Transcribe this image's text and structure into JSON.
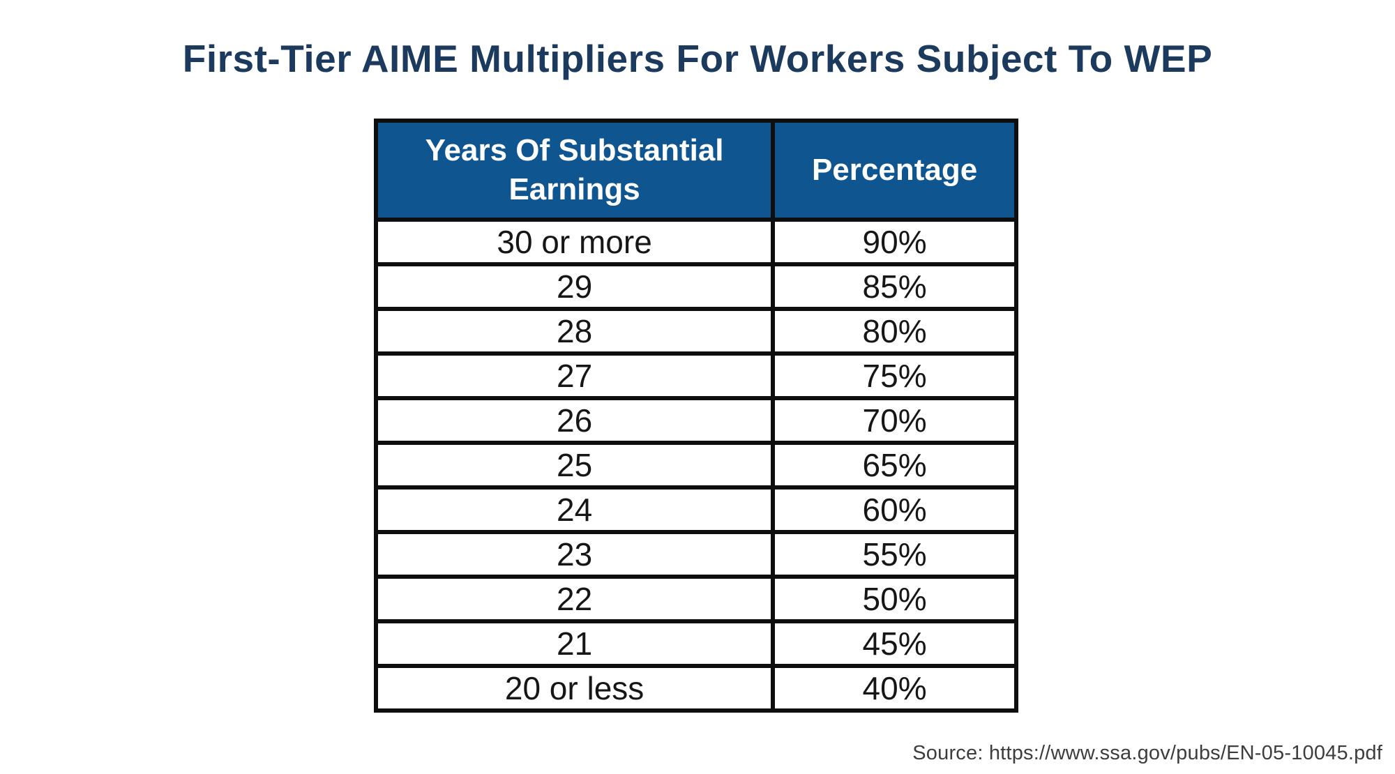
{
  "title": "First-Tier AIME Multipliers For Workers Subject To WEP",
  "table": {
    "columns": [
      "Years Of Substantial Earnings",
      "Percentage"
    ],
    "rows": [
      {
        "years": "30 or more",
        "percentage": "90%"
      },
      {
        "years": "29",
        "percentage": "85%"
      },
      {
        "years": "28",
        "percentage": "80%"
      },
      {
        "years": "27",
        "percentage": "75%"
      },
      {
        "years": "26",
        "percentage": "70%"
      },
      {
        "years": "25",
        "percentage": "65%"
      },
      {
        "years": "24",
        "percentage": "60%"
      },
      {
        "years": "23",
        "percentage": "55%"
      },
      {
        "years": "22",
        "percentage": "50%"
      },
      {
        "years": "21",
        "percentage": "45%"
      },
      {
        "years": "20 or less",
        "percentage": "40%"
      }
    ]
  },
  "source": "Source: https://www.ssa.gov/pubs/EN-05-10045.pdf",
  "colors": {
    "header_bg": "#0f5690",
    "header_text": "#ffffff",
    "title_text": "#1c3a5e",
    "border": "#0e0e0e",
    "cell_text": "#161616",
    "source_text": "#3d3d3d"
  },
  "chart_data": {
    "type": "table",
    "title": "First-Tier AIME Multipliers For Workers Subject To WEP",
    "columns": [
      "Years Of Substantial Earnings",
      "Percentage"
    ],
    "rows": [
      [
        "30 or more",
        "90%"
      ],
      [
        "29",
        "85%"
      ],
      [
        "28",
        "80%"
      ],
      [
        "27",
        "75%"
      ],
      [
        "26",
        "70%"
      ],
      [
        "25",
        "65%"
      ],
      [
        "24",
        "60%"
      ],
      [
        "23",
        "55%"
      ],
      [
        "22",
        "50%"
      ],
      [
        "21",
        "45%"
      ],
      [
        "20 or less",
        "40%"
      ]
    ],
    "source": "https://www.ssa.gov/pubs/EN-05-10045.pdf"
  }
}
